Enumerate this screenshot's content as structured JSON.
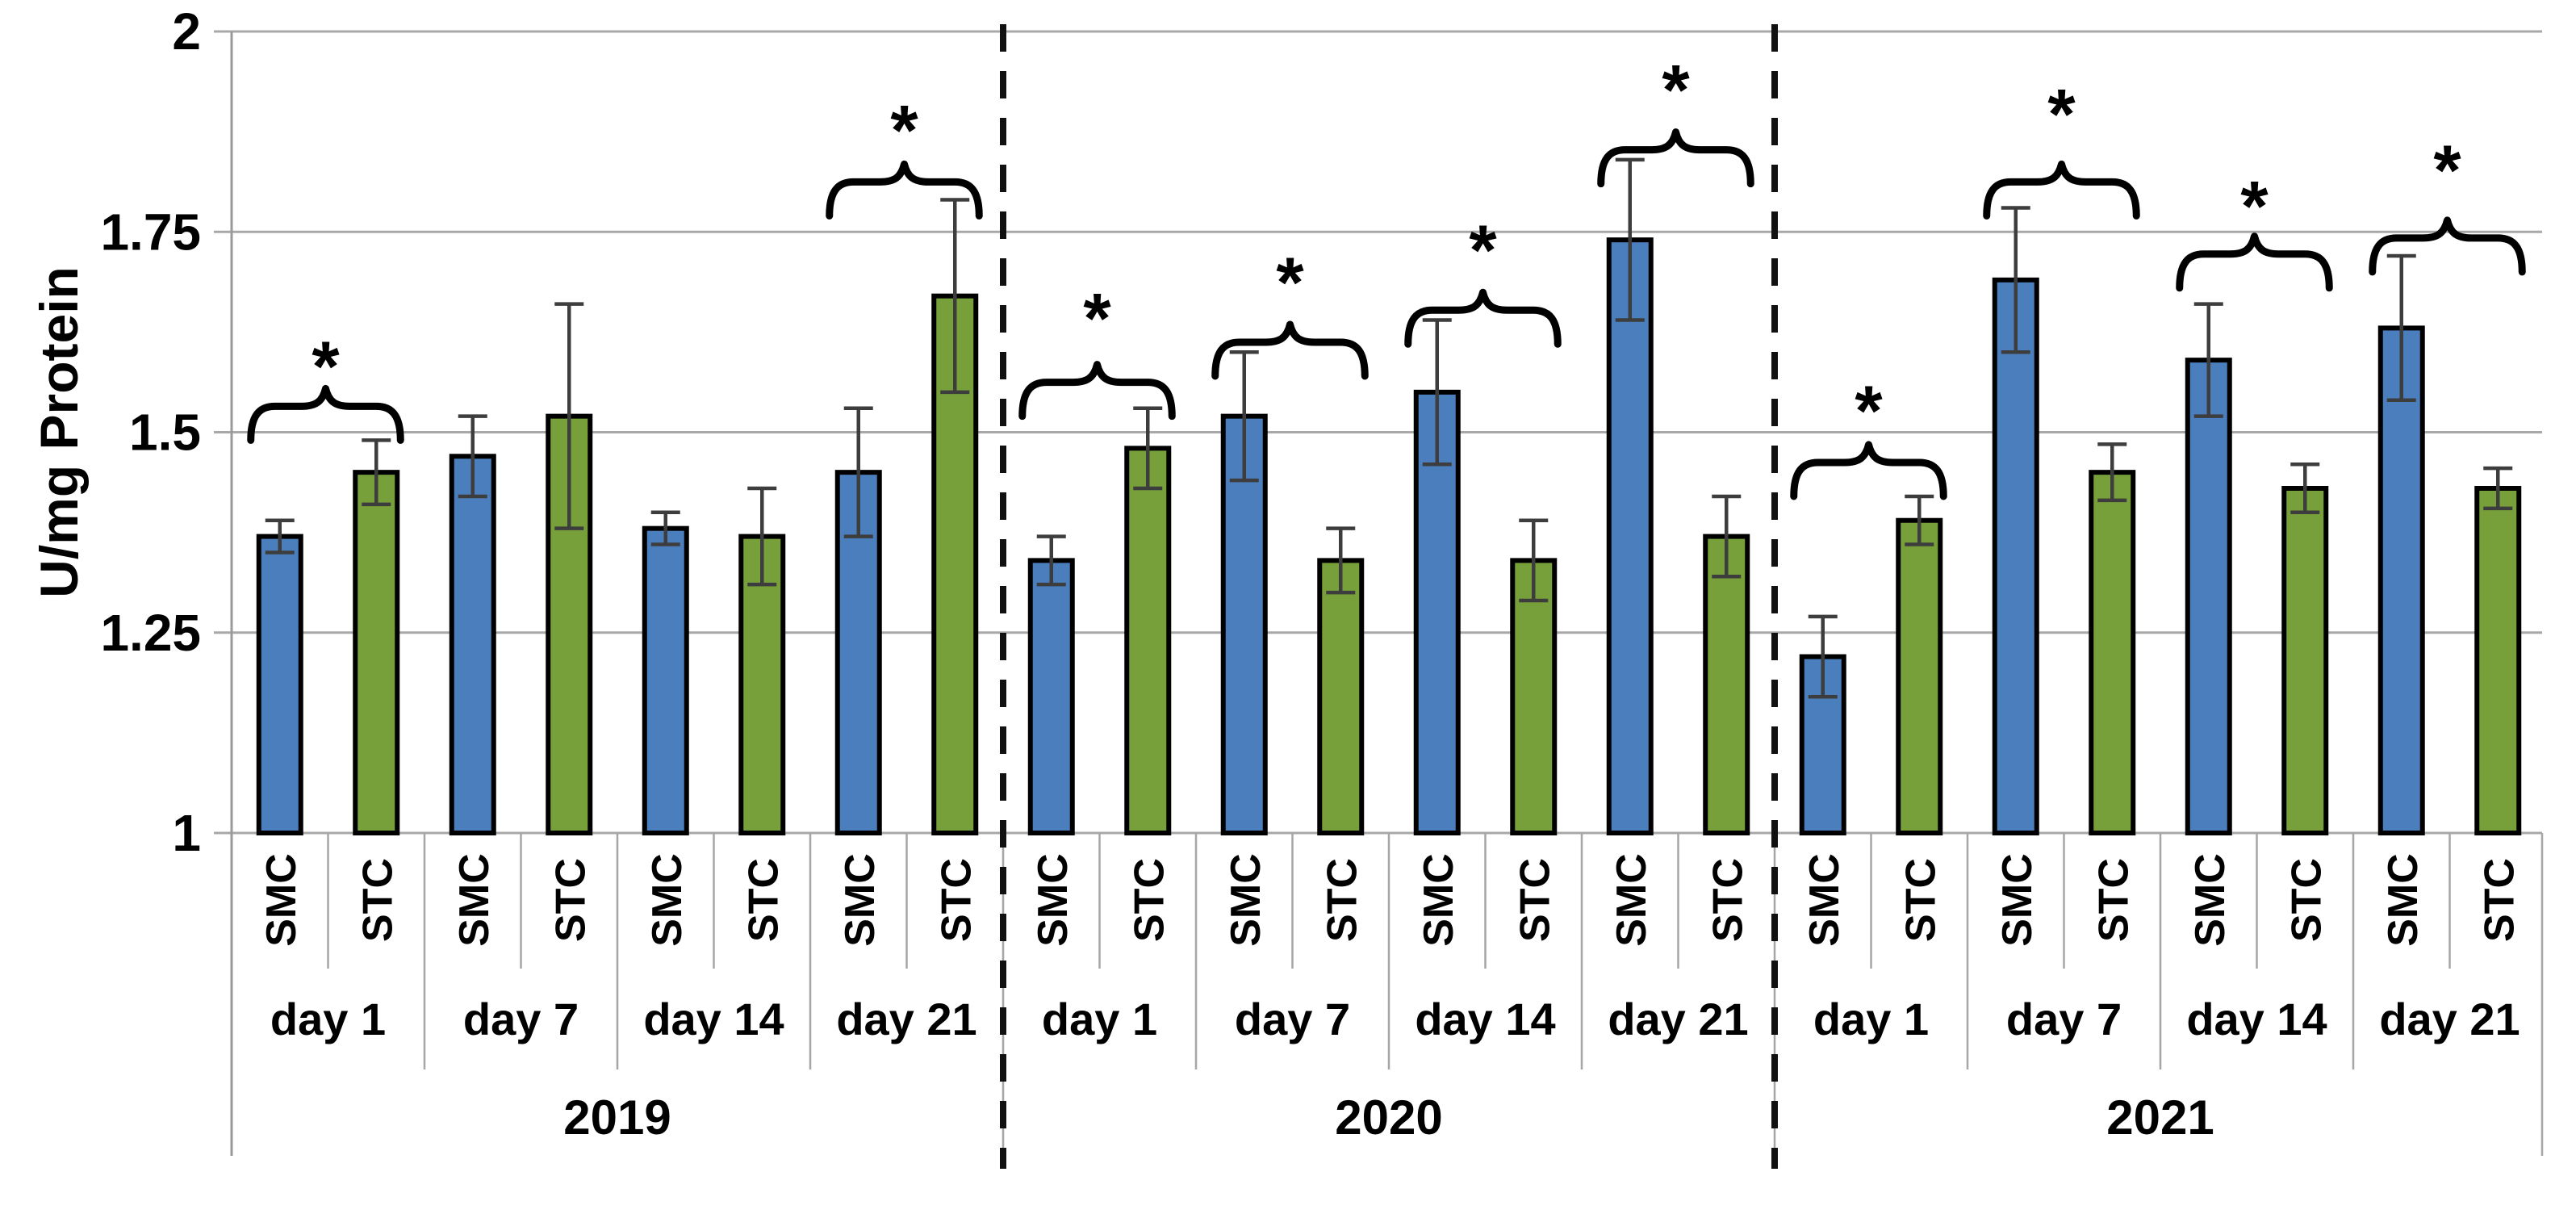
{
  "figure": {
    "background": "#ffffff",
    "description": "Grouped bar chart of enzyme activity (U/mg Protein) for SMC and STC samples at day 1, 7, 14, 21 across years 2019, 2020, 2021, with error bars and significance braces marked by asterisks"
  },
  "chart_data": {
    "type": "bar",
    "title": "",
    "xlabel": "",
    "ylabel": "U/mg Protein",
    "ylim": [
      1,
      2
    ],
    "ytick_values": [
      1,
      1.25,
      1.5,
      1.75,
      2
    ],
    "ytick_labels": [
      "1",
      "1.25",
      "1.5",
      "1.75",
      "2"
    ],
    "grid": "horizontal gridlines on, vertical off",
    "legend_position": "none",
    "significance_marker": "*",
    "series_names": [
      "SMC",
      "STC"
    ],
    "colors": {
      "SMC": "#4b7ebd",
      "STC": "#77a03b",
      "bar_outline": "#000000",
      "error_bar": "#3d3d3d",
      "grid_line": "#a8a8a8",
      "axis_line": "#9a9a9a",
      "separator_line": "#a6a6a6",
      "year_divider": "#111111",
      "text": "#000000"
    },
    "categories": [
      "2019 day 1",
      "2019 day 7",
      "2019 day 14",
      "2019 day 21",
      "2020 day 1",
      "2020 day 7",
      "2020 day 14",
      "2020 day 21",
      "2021 day 1",
      "2021 day 7",
      "2021 day 14",
      "2021 day 21"
    ],
    "series": [
      {
        "name": "SMC",
        "values": [
          1.37,
          1.47,
          1.38,
          1.45,
          1.34,
          1.52,
          1.55,
          1.74,
          1.22,
          1.69,
          1.59,
          1.63
        ],
        "errors": [
          0.02,
          0.05,
          0.02,
          0.08,
          0.03,
          0.08,
          0.09,
          0.1,
          0.05,
          0.09,
          0.07,
          0.09
        ]
      },
      {
        "name": "STC",
        "values": [
          1.45,
          1.52,
          1.37,
          1.67,
          1.48,
          1.34,
          1.34,
          1.37,
          1.39,
          1.45,
          1.43,
          1.43
        ],
        "errors": [
          0.04,
          0.14,
          0.06,
          0.12,
          0.05,
          0.04,
          0.05,
          0.05,
          0.03,
          0.035,
          0.03,
          0.025
        ]
      }
    ],
    "years": [
      {
        "label": "2019",
        "days": [
          {
            "label": "day 1",
            "bars": [
              {
                "series": "SMC",
                "value": 1.37,
                "err": 0.02
              },
              {
                "series": "STC",
                "value": 1.45,
                "err": 0.04
              }
            ],
            "sig": {
              "present": true,
              "brace_y": 1.49,
              "star_y": 1.6
            }
          },
          {
            "label": "day 7",
            "bars": [
              {
                "series": "SMC",
                "value": 1.47,
                "err": 0.05
              },
              {
                "series": "STC",
                "value": 1.52,
                "err": 0.14
              }
            ],
            "sig": {
              "present": false
            }
          },
          {
            "label": "day 14",
            "bars": [
              {
                "series": "SMC",
                "value": 1.38,
                "err": 0.02
              },
              {
                "series": "STC",
                "value": 1.37,
                "err": 0.06
              }
            ],
            "sig": {
              "present": false
            }
          },
          {
            "label": "day 21",
            "bars": [
              {
                "series": "SMC",
                "value": 1.45,
                "err": 0.08
              },
              {
                "series": "STC",
                "value": 1.67,
                "err": 0.12
              }
            ],
            "sig": {
              "present": true,
              "brace_y": 1.77,
              "star_y": 1.895
            }
          }
        ]
      },
      {
        "label": "2020",
        "days": [
          {
            "label": "day 1",
            "bars": [
              {
                "series": "SMC",
                "value": 1.34,
                "err": 0.03
              },
              {
                "series": "STC",
                "value": 1.48,
                "err": 0.05
              }
            ],
            "sig": {
              "present": true,
              "brace_y": 1.52,
              "star_y": 1.66
            }
          },
          {
            "label": "day 7",
            "bars": [
              {
                "series": "SMC",
                "value": 1.52,
                "err": 0.08
              },
              {
                "series": "STC",
                "value": 1.34,
                "err": 0.04
              }
            ],
            "sig": {
              "present": true,
              "brace_y": 1.57,
              "star_y": 1.705
            }
          },
          {
            "label": "day 14",
            "bars": [
              {
                "series": "SMC",
                "value": 1.55,
                "err": 0.09
              },
              {
                "series": "STC",
                "value": 1.34,
                "err": 0.05
              }
            ],
            "sig": {
              "present": true,
              "brace_y": 1.61,
              "star_y": 1.745
            }
          },
          {
            "label": "day 21",
            "bars": [
              {
                "series": "SMC",
                "value": 1.74,
                "err": 0.1
              },
              {
                "series": "STC",
                "value": 1.37,
                "err": 0.05
              }
            ],
            "sig": {
              "present": true,
              "brace_y": 1.81,
              "star_y": 1.945
            }
          }
        ]
      },
      {
        "label": "2021",
        "days": [
          {
            "label": "day 1",
            "bars": [
              {
                "series": "SMC",
                "value": 1.22,
                "err": 0.05
              },
              {
                "series": "STC",
                "value": 1.39,
                "err": 0.03
              }
            ],
            "sig": {
              "present": true,
              "brace_y": 1.42,
              "star_y": 1.545
            }
          },
          {
            "label": "day 7",
            "bars": [
              {
                "series": "SMC",
                "value": 1.69,
                "err": 0.09
              },
              {
                "series": "STC",
                "value": 1.45,
                "err": 0.035
              }
            ],
            "sig": {
              "present": true,
              "brace_y": 1.77,
              "star_y": 1.915
            }
          },
          {
            "label": "day 14",
            "bars": [
              {
                "series": "SMC",
                "value": 1.59,
                "err": 0.07
              },
              {
                "series": "STC",
                "value": 1.43,
                "err": 0.03
              }
            ],
            "sig": {
              "present": true,
              "brace_y": 1.68,
              "star_y": 1.8
            }
          },
          {
            "label": "day 21",
            "bars": [
              {
                "series": "SMC",
                "value": 1.63,
                "err": 0.09
              },
              {
                "series": "STC",
                "value": 1.43,
                "err": 0.025
              }
            ],
            "sig": {
              "present": true,
              "brace_y": 1.7,
              "star_y": 1.845
            }
          }
        ]
      }
    ]
  }
}
